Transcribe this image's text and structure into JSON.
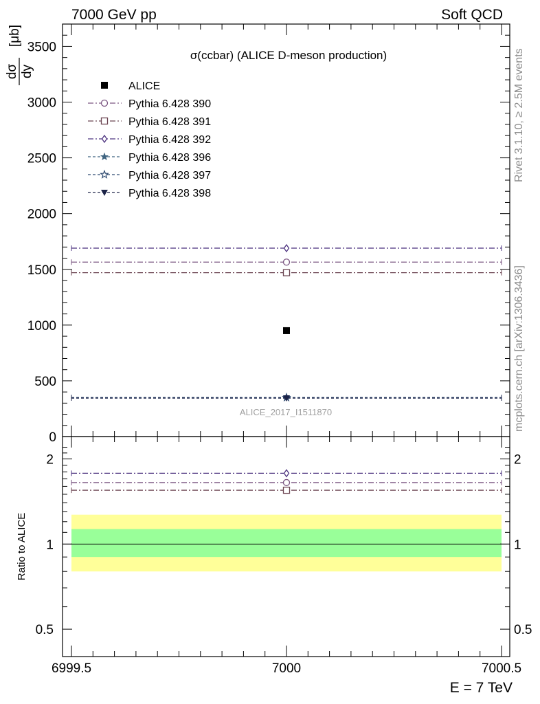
{
  "header": {
    "left": "7000 GeV pp",
    "right": "Soft QCD"
  },
  "side_labels": {
    "rivet": "Rivet 3.1.10, ≥ 2.5M events",
    "mcplots": "mcplots.cern.ch [arXiv:1306.3436]"
  },
  "chart_data": [
    {
      "type": "scatter",
      "title": "σ(ccbar) (ALICE D-meson production)",
      "ylabel_num": "dσ",
      "ylabel_den": "dy",
      "ylabel_unit": "[μb]",
      "analysis": "ALICE_2017_I1511870",
      "xlim": [
        6999.5,
        7000.5
      ],
      "ylim": [
        0,
        3700
      ],
      "yticks": [
        0,
        500,
        1000,
        1500,
        2000,
        2500,
        3000,
        3500
      ],
      "ytick_labels": [
        "0",
        "500",
        "1000",
        "1500",
        "2000",
        "2500",
        "3000",
        "3500"
      ],
      "legend_position": "top-left",
      "series": [
        {
          "name": "ALICE",
          "x": [
            7000
          ],
          "y": [
            950
          ],
          "marker": "filled-square",
          "color": "#000000",
          "line": "none"
        },
        {
          "name": "Pythia 6.428 390",
          "x": [
            7000
          ],
          "y": [
            1565
          ],
          "marker": "open-circle",
          "color": "#7a5480",
          "line": "dashdot"
        },
        {
          "name": "Pythia 6.428 391",
          "x": [
            7000
          ],
          "y": [
            1470
          ],
          "marker": "open-square",
          "color": "#6b4451",
          "line": "dashdot"
        },
        {
          "name": "Pythia 6.428 392",
          "x": [
            7000
          ],
          "y": [
            1690
          ],
          "marker": "open-diamond",
          "color": "#4e3480",
          "line": "dashdot"
        },
        {
          "name": "Pythia 6.428 396",
          "x": [
            7000
          ],
          "y": [
            350
          ],
          "marker": "filled-star",
          "color": "#3f6480",
          "line": "dashed"
        },
        {
          "name": "Pythia 6.428 397",
          "x": [
            7000
          ],
          "y": [
            350
          ],
          "marker": "open-star",
          "color": "#2e4a70",
          "line": "dashed"
        },
        {
          "name": "Pythia 6.428 398",
          "x": [
            7000
          ],
          "y": [
            345
          ],
          "marker": "filled-triangle-down",
          "color": "#1c2348",
          "line": "dashed"
        }
      ]
    },
    {
      "type": "scatter",
      "ylabel": "Ratio to ALICE",
      "xlabel": "E = 7 TeV",
      "xlim": [
        6999.5,
        7000.5
      ],
      "xticks": [
        6999.5,
        7000,
        7000.5
      ],
      "xtick_labels": [
        "6999.5",
        "7000",
        "7000.5"
      ],
      "ylim": [
        0.4,
        2.4
      ],
      "log_y": true,
      "yticks": [
        0.5,
        1,
        2
      ],
      "ytick_labels": [
        "0.5",
        "1",
        "2"
      ],
      "bands": [
        {
          "name": "outer",
          "low": 0.8,
          "high": 1.27,
          "color": "#ffff99"
        },
        {
          "name": "inner",
          "low": 0.9,
          "high": 1.13,
          "color": "#99ff99"
        }
      ],
      "series": [
        {
          "name": "Pythia 6.428 390",
          "y": 1.65
        },
        {
          "name": "Pythia 6.428 391",
          "y": 1.55
        },
        {
          "name": "Pythia 6.428 392",
          "y": 1.78
        }
      ]
    }
  ]
}
